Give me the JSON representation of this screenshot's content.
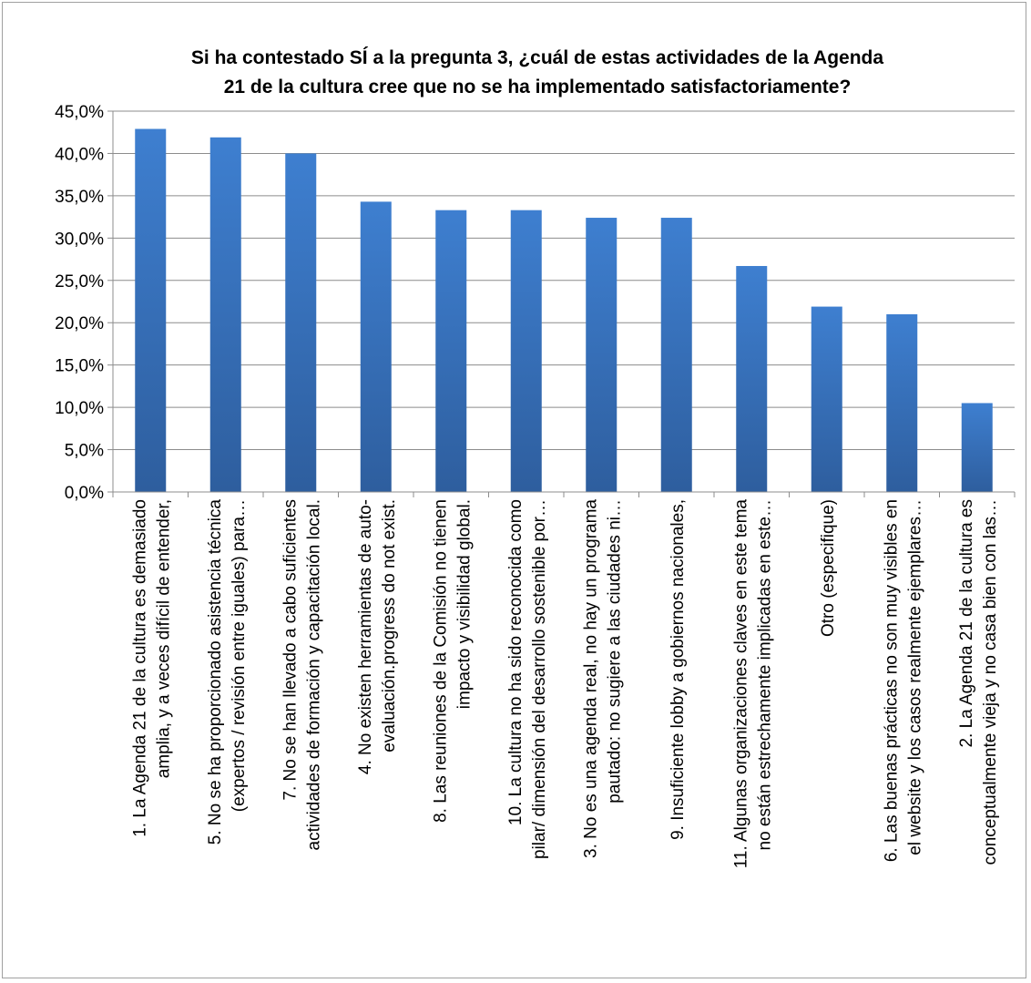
{
  "chart_data": {
    "type": "bar",
    "title_lines": [
      "Si ha contestado SÍ a la pregunta  3, ¿cuál de estas actividades de la Agenda",
      "21 de la cultura cree que no se ha implementado satisfactoriamente?"
    ],
    "ylim": [
      0,
      45
    ],
    "y_ticks": [
      "0,0%",
      "5,0%",
      "10,0%",
      "15,0%",
      "20,0%",
      "25,0%",
      "30,0%",
      "35,0%",
      "40,0%",
      "45,0%"
    ],
    "grid": true,
    "bar_color": "#3a74bf",
    "categories": [
      [
        "1. La Agenda 21 de la cultura es demasiado",
        "amplia, y a veces difícil de entender,"
      ],
      [
        "5. No se ha proporcionado asistencia técnica",
        "(expertos / revisión entre iguales) para…"
      ],
      [
        "7. No se han llevado a cabo suficientes",
        "actividades de formación y capacitación local."
      ],
      [
        "4. No existen herramientas de auto-",
        "evaluación.progress do not exist."
      ],
      [
        "8. Las reuniones de la Comisión no tienen",
        "impacto y visibilidad global."
      ],
      [
        "10. La cultura no ha sido reconocida como",
        "pilar/ dimensión del desarrollo sostenible por…"
      ],
      [
        "3.  No es una agenda real, no hay un programa",
        "pautado: no sugiere a las ciudades ni…"
      ],
      [
        "9. Insuficiente lobby a gobiernos nacionales,"
      ],
      [
        "11. Algunas organizaciones claves en este tema",
        "no están estrechamente implicadas en este…"
      ],
      [
        "Otro (especifique)"
      ],
      [
        "6. Las buenas prácticas no son muy visibles en",
        "el website y los casos realmente ejemplares…"
      ],
      [
        "2. La Agenda 21 de la cultura es",
        "conceptualmente vieja y no casa bien con las…"
      ]
    ],
    "values": [
      42.9,
      41.9,
      40.0,
      34.3,
      33.3,
      33.3,
      32.4,
      32.4,
      26.7,
      21.9,
      21.0,
      10.5
    ]
  }
}
